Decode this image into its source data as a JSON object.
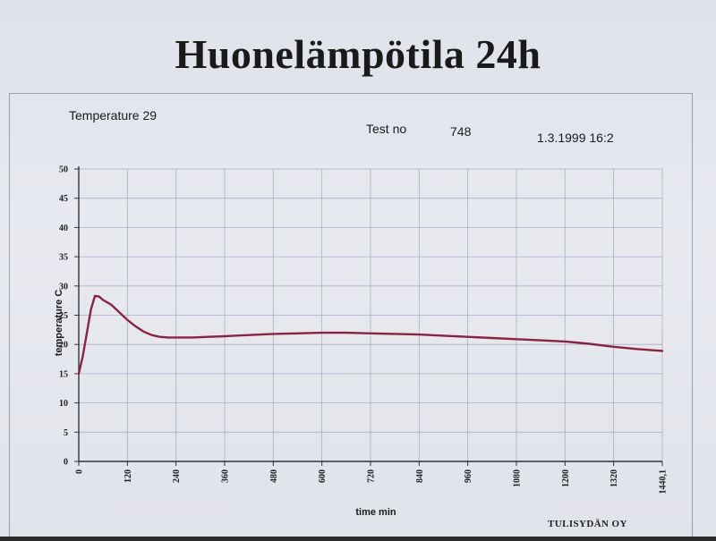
{
  "page": {
    "title": "Huonelämpötila 24h",
    "header_left": "Temperature 29",
    "test_label": "Test no",
    "test_number": "748",
    "datetime": "1.3.1999 16:2",
    "company": "TULISYDÄN OY"
  },
  "chart_data": {
    "type": "line",
    "title": "Huonelämpötila 24h",
    "xlabel": "time min",
    "ylabel": "temperature C",
    "xlim": [
      0,
      1440.1
    ],
    "ylim": [
      0,
      50
    ],
    "x_ticks": [
      "0",
      "120",
      "240",
      "360",
      "480",
      "600",
      "720",
      "840",
      "960",
      "1080",
      "1200",
      "1320",
      "1440,1"
    ],
    "y_ticks": [
      "0",
      "5",
      "10",
      "15",
      "20",
      "25",
      "30",
      "35",
      "40",
      "45",
      "50"
    ],
    "grid": true,
    "line_color": "#8b2340",
    "series": [
      {
        "x": [
          0,
          10,
          20,
          30,
          40,
          50,
          60,
          80,
          100,
          120,
          140,
          160,
          180,
          200,
          220,
          240,
          280,
          320,
          360,
          420,
          480,
          540,
          600,
          660,
          720,
          780,
          840,
          900,
          960,
          1020,
          1080,
          1140,
          1200,
          1260,
          1320,
          1380,
          1440
        ],
        "y": [
          15,
          18,
          22,
          26,
          28.3,
          28.2,
          27.6,
          26.8,
          25.5,
          24.2,
          23.1,
          22.2,
          21.6,
          21.3,
          21.2,
          21.2,
          21.2,
          21.3,
          21.4,
          21.6,
          21.8,
          21.9,
          22.0,
          22.0,
          21.9,
          21.8,
          21.7,
          21.5,
          21.3,
          21.1,
          20.9,
          20.7,
          20.5,
          20.1,
          19.6,
          19.2,
          18.9
        ]
      }
    ]
  }
}
